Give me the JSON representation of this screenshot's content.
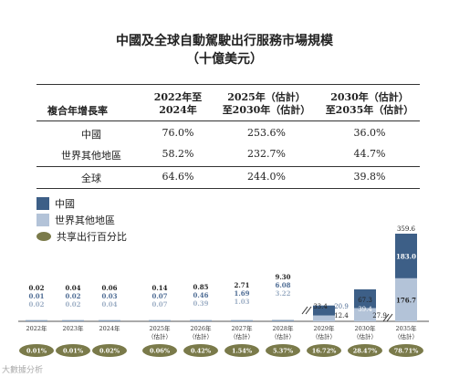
{
  "title": "中國及全球自動駕駛出行服務市場規模",
  "subtitle": "（十億美元）",
  "cagr_table": {
    "row_header": "複合年增長率",
    "columns": [
      "2022年至\n2024年",
      "2025年（估計）\n至2030年（估計）",
      "2030年（估計）\n至2035年（估計）"
    ],
    "rows": [
      {
        "label": "中國",
        "values": [
          "76.0%",
          "253.6%",
          "36.0%"
        ]
      },
      {
        "label": "世界其他地區",
        "values": [
          "58.2%",
          "232.7%",
          "44.7%"
        ]
      },
      {
        "label": "全球",
        "values": [
          "64.6%",
          "244.0%",
          "39.8%"
        ]
      }
    ]
  },
  "legend": {
    "china": "中國",
    "rest": "世界其他地區",
    "share": "共享出行百分比"
  },
  "colors": {
    "china": "#3d5f87",
    "rest": "#b3c3d8",
    "oval": "#7a7a4a",
    "total_text": "#222222",
    "china_text": "#4d6b93",
    "rest_text": "#9fb0c6"
  },
  "chart_data": {
    "type": "bar",
    "stacked": true,
    "categories": [
      "2022年",
      "2023年",
      "2024年",
      "2025年\n（估計）",
      "2026年\n（估計）",
      "2027年\n（估計）",
      "2028年\n（估計）",
      "2029年\n（估計）",
      "2030年\n（估計）",
      "2035年\n（估計）"
    ],
    "series": [
      {
        "name": "中國",
        "values": [
          0.01,
          0.02,
          0.03,
          0.07,
          0.46,
          1.69,
          6.08,
          20.9,
          39.4,
          183.0
        ]
      },
      {
        "name": "世界其他地區",
        "values": [
          0.02,
          0.02,
          0.04,
          0.07,
          0.39,
          1.03,
          3.22,
          12.4,
          27.9,
          176.7
        ]
      }
    ],
    "totals": [
      0.02,
      0.04,
      0.06,
      0.14,
      0.85,
      2.71,
      9.3,
      33.4,
      67.3,
      359.6
    ],
    "china_labels": [
      "0.01",
      "0.02",
      "0.03",
      "0.07",
      "0.46",
      "1.69",
      "6.08",
      "20.9",
      "39.4",
      "183.0"
    ],
    "rest_labels": [
      "0.02",
      "0.02",
      "0.04",
      "0.07",
      "0.39",
      "1.03",
      "3.22",
      "12.4",
      "27.9",
      "176.7"
    ],
    "total_labels": [
      "0.02",
      "0.04",
      "0.06",
      "0.14",
      "0.85",
      "2.71",
      "9.30",
      "33.4",
      "67.3",
      "359.6"
    ],
    "shared_mobility_share": [
      "0.01%",
      "0.01%",
      "0.02%",
      "0.06%",
      "0.42%",
      "1.54%",
      "5.37%",
      "16.72%",
      "28.47%",
      "78.71%"
    ],
    "axis_break": true
  },
  "watermark": "大數據分析"
}
